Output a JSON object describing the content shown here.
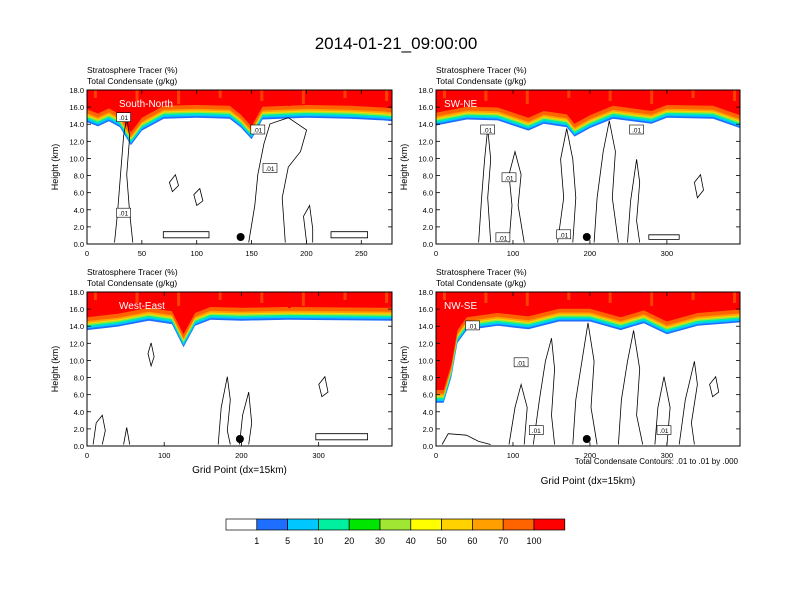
{
  "figure": {
    "title": "2014-01-21_09:00:00",
    "footnote": "Total Condensate Contours: .01 to .01 by .000"
  },
  "colors": {
    "colorbar": [
      "#ffffff",
      "#1e6eff",
      "#00c8ff",
      "#00f0a0",
      "#00e600",
      "#a0e632",
      "#ffff00",
      "#ffd200",
      "#ffa000",
      "#ff6400",
      "#ff0000"
    ],
    "contour_line": "#000000",
    "axis": "#000000"
  },
  "colorbar": {
    "labels": [
      "1",
      "5",
      "10",
      "20",
      "30",
      "40",
      "50",
      "60",
      "70",
      "100"
    ]
  },
  "chart_data": [
    {
      "type": "heatmap",
      "title": "South-North",
      "fields": [
        "Stratosphere Tracer (%)",
        "Total Condensate (g/kg)"
      ],
      "field_label_1": "Stratosphere Tracer   (%)",
      "field_label_2": "Total Condensate   (g/kg)",
      "ylabel": "Height (km)",
      "xlabel": "",
      "xlim": [
        0,
        278
      ],
      "ylim": [
        0,
        18
      ],
      "xticks": [
        0,
        50,
        100,
        150,
        200,
        250
      ],
      "yticks": [
        0.0,
        2.0,
        4.0,
        6.0,
        8.0,
        10.0,
        12.0,
        14.0,
        16.0,
        18.0
      ],
      "tracer_base_km": [
        [
          0,
          15.2
        ],
        [
          10,
          14.7
        ],
        [
          20,
          15.3
        ],
        [
          30,
          14.6
        ],
        [
          40,
          12.5
        ],
        [
          50,
          14.2
        ],
        [
          70,
          15.6
        ],
        [
          100,
          15.7
        ],
        [
          130,
          15.6
        ],
        [
          140,
          14.6
        ],
        [
          150,
          13.2
        ],
        [
          160,
          15.5
        ],
        [
          200,
          15.7
        ],
        [
          240,
          15.6
        ],
        [
          270,
          15.4
        ],
        [
          278,
          15.3
        ]
      ],
      "contour_labels": [
        ".01",
        ".01",
        ".01",
        ".01"
      ],
      "marker_x": 140
    },
    {
      "type": "heatmap",
      "title": "SW-NE",
      "fields": [
        "Stratosphere Tracer (%)",
        "Total Condensate (g/kg)"
      ],
      "field_label_1": "Stratosphere Tracer   (%)",
      "field_label_2": "Total Condensate   (g/kg)",
      "ylabel": "Height (km)",
      "xlabel": "",
      "xlim": [
        0,
        395
      ],
      "ylim": [
        0,
        18
      ],
      "xticks": [
        0,
        100,
        200,
        300
      ],
      "yticks": [
        0.0,
        2.0,
        4.0,
        6.0,
        8.0,
        10.0,
        12.0,
        14.0,
        16.0,
        18.0
      ],
      "tracer_base_km": [
        [
          0,
          14.8
        ],
        [
          40,
          15.5
        ],
        [
          80,
          15.4
        ],
        [
          120,
          14.2
        ],
        [
          140,
          15.0
        ],
        [
          170,
          14.6
        ],
        [
          180,
          13.5
        ],
        [
          200,
          14.5
        ],
        [
          230,
          15.6
        ],
        [
          280,
          15.0
        ],
        [
          300,
          15.7
        ],
        [
          360,
          15.6
        ],
        [
          395,
          14.5
        ]
      ],
      "contour_labels": [
        ".01",
        ".01",
        ".01",
        ".01",
        ".01"
      ],
      "marker_x": 196
    },
    {
      "type": "heatmap",
      "title": "West-East",
      "fields": [
        "Stratosphere Tracer (%)",
        "Total Condensate (g/kg)"
      ],
      "field_label_1": "Stratosphere Tracer   (%)",
      "field_label_2": "Total Condensate   (g/kg)",
      "ylabel": "Height (km)",
      "xlabel": "Grid Point (dx=15km)",
      "xlim": [
        0,
        395
      ],
      "ylim": [
        0,
        18
      ],
      "xticks": [
        0,
        100,
        200,
        300
      ],
      "yticks": [
        0.0,
        2.0,
        4.0,
        6.0,
        8.0,
        10.0,
        12.0,
        14.0,
        16.0,
        18.0
      ],
      "tracer_base_km": [
        [
          0,
          14.5
        ],
        [
          40,
          14.9
        ],
        [
          80,
          15.6
        ],
        [
          110,
          15.2
        ],
        [
          125,
          12.5
        ],
        [
          140,
          15.0
        ],
        [
          160,
          15.7
        ],
        [
          200,
          15.6
        ],
        [
          260,
          15.7
        ],
        [
          395,
          15.6
        ]
      ],
      "contour_labels": [],
      "marker_x": 198
    },
    {
      "type": "heatmap",
      "title": "NW-SE",
      "fields": [
        "Stratosphere Tracer (%)",
        "Total Condensate (g/kg)"
      ],
      "field_label_1": "Stratosphere Tracer   (%)",
      "field_label_2": "Total Condensate   (g/kg)",
      "ylabel": "Height (km)",
      "xlabel": "Grid Point (dx=15km)",
      "xlim": [
        0,
        395
      ],
      "ylim": [
        0,
        18
      ],
      "xticks": [
        0,
        100,
        200,
        300
      ],
      "yticks": [
        0.0,
        2.0,
        4.0,
        6.0,
        8.0,
        10.0,
        12.0,
        14.0,
        16.0,
        18.0
      ],
      "tracer_base_km": [
        [
          0,
          6.0
        ],
        [
          10,
          6.0
        ],
        [
          20,
          9.0
        ],
        [
          28,
          13.0
        ],
        [
          40,
          14.5
        ],
        [
          80,
          15.0
        ],
        [
          120,
          14.6
        ],
        [
          160,
          15.5
        ],
        [
          200,
          15.5
        ],
        [
          240,
          14.5
        ],
        [
          270,
          15.3
        ],
        [
          300,
          14.0
        ],
        [
          340,
          15.0
        ],
        [
          395,
          15.4
        ]
      ],
      "contour_labels": [
        ".01",
        ".01",
        ".01",
        ".01"
      ],
      "marker_x": 196
    }
  ]
}
